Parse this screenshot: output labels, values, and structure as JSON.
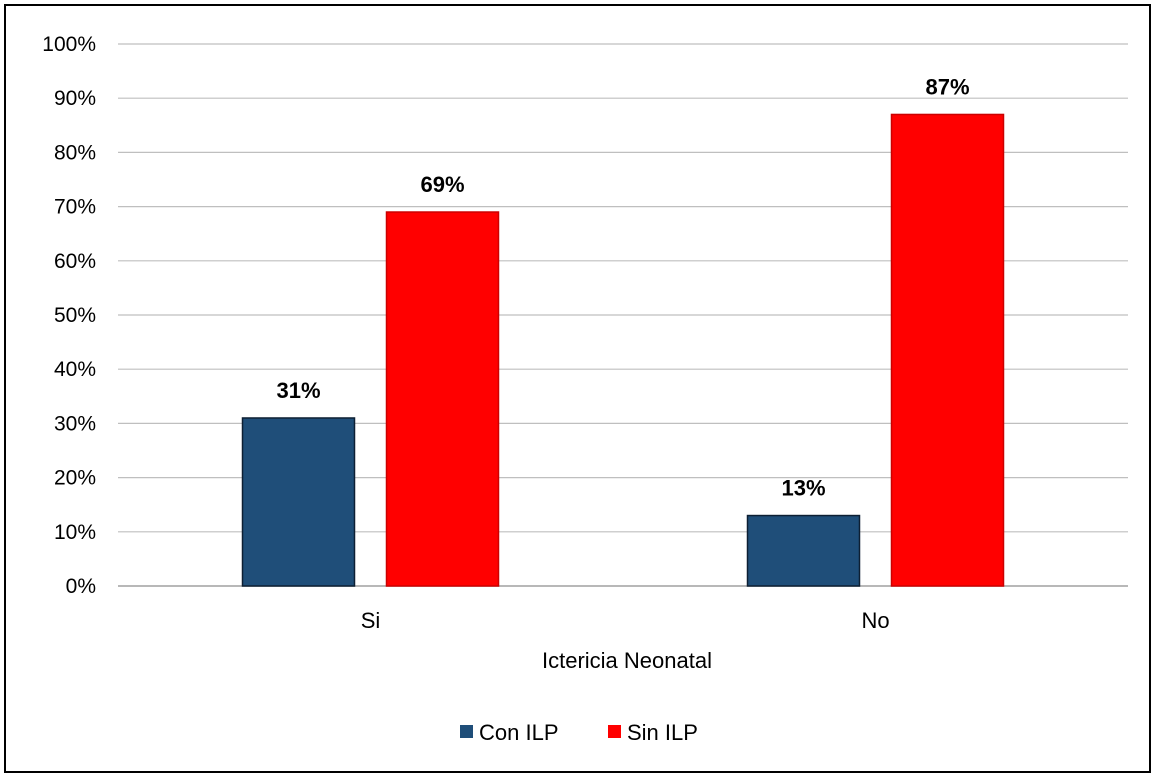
{
  "chart_data": {
    "type": "bar",
    "title": "",
    "xlabel": "Ictericia Neonatal",
    "ylabel": "",
    "categories": [
      "Si",
      "No"
    ],
    "ylim": [
      0,
      100
    ],
    "yticks": [
      0,
      10,
      20,
      30,
      40,
      50,
      60,
      70,
      80,
      90,
      100
    ],
    "ytick_suffix": "%",
    "grid": true,
    "legend_position": "bottom",
    "series": [
      {
        "name": "Con ILP",
        "color": "#1f4e79",
        "values": [
          31,
          13
        ],
        "labels": [
          "31%",
          "13%"
        ]
      },
      {
        "name": "Sin ILP",
        "color": "#ff0000",
        "values": [
          69,
          87
        ],
        "labels": [
          "69%",
          "87%"
        ]
      }
    ]
  }
}
